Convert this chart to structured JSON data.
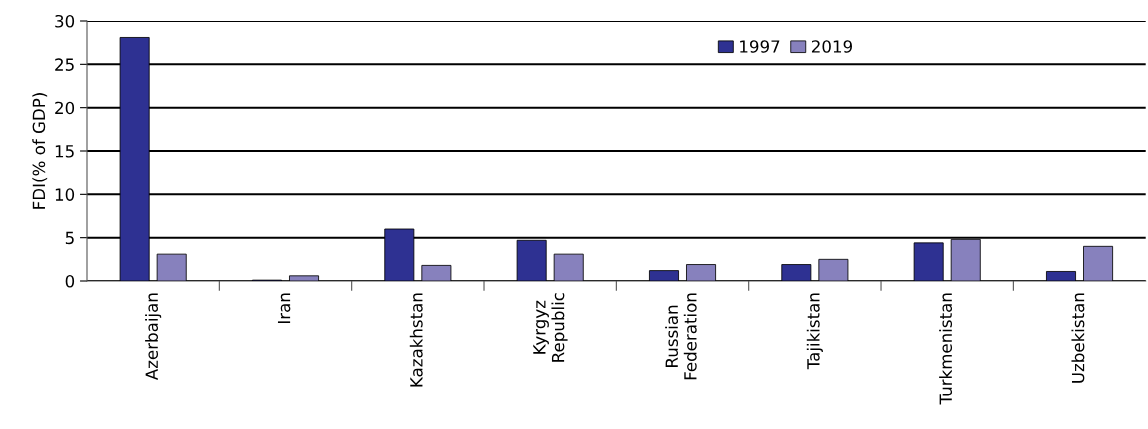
{
  "chart_data": {
    "type": "bar",
    "ylabel": "FDI(% of GDP)",
    "categories": [
      "Azerbaijan",
      "Iran",
      "Kazakhstan",
      "Kyrgyz\nRepublic",
      "Russian\nFederation",
      "Tajikistan",
      "Turkmenistan",
      "Uzbekistan"
    ],
    "series": [
      {
        "name": "1997",
        "color": "#2e3192",
        "values": [
          28.1,
          0.1,
          6.0,
          4.7,
          1.2,
          1.9,
          4.4,
          1.1
        ]
      },
      {
        "name": "2019",
        "color": "#8781bd",
        "values": [
          3.1,
          0.6,
          1.8,
          3.1,
          1.9,
          2.5,
          4.8,
          4.0
        ]
      }
    ],
    "ylim": [
      0,
      30
    ],
    "yticks": [
      0,
      5,
      10,
      15,
      20,
      25,
      30
    ],
    "grid": "y",
    "legend": "top"
  }
}
